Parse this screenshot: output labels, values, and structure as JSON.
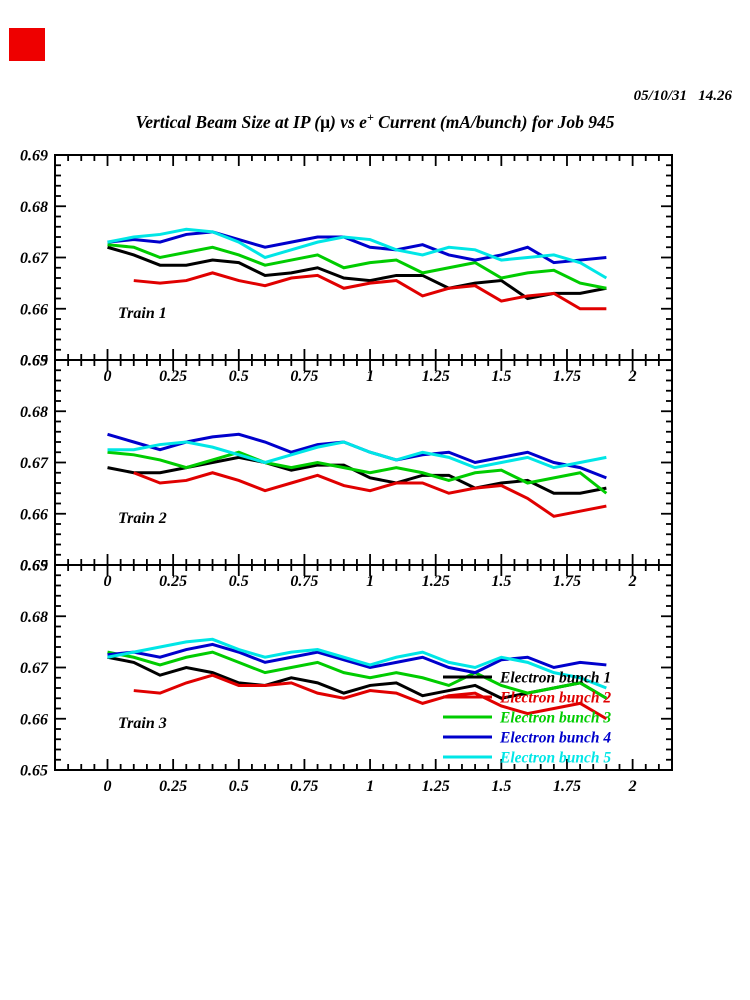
{
  "page": {
    "datestamp": "05/10/31   14.26",
    "corner_marker_color": "#ee0000",
    "title_parts": {
      "prefix": "Vertical Beam Size at IP (",
      "mu": "μ",
      "mid": ") vs e",
      "sup": "+",
      "suffix": " Current (mA/bunch) for Job 945"
    }
  },
  "chart_data": {
    "type": "line",
    "title": "Vertical Beam Size at IP (μ) vs e+ Current (mA/bunch) for Job 945",
    "xlabel": "",
    "ylabel": "",
    "xlim": [
      -0.2,
      2.15
    ],
    "ylim": [
      0.65,
      0.69
    ],
    "grid": false,
    "x_major_ticks": [
      0,
      0.25,
      0.5,
      0.75,
      1,
      1.25,
      1.5,
      1.75,
      2
    ],
    "x_tick_labels": [
      "0",
      "0.25",
      "0.5",
      "0.75",
      "1",
      "1.25",
      "1.5",
      "1.75",
      "2"
    ],
    "x_minor_step": 0.05,
    "y_major_ticks": [
      0.69,
      0.68,
      0.67,
      0.66,
      0.65
    ],
    "y_tick_labels": [
      "0.69",
      "0.68",
      "0.67",
      "0.66",
      "0.65"
    ],
    "y_minor_step": 0.002,
    "legend": {
      "position": "inside-bottom-right-panel-3",
      "entries": [
        {
          "label": "Electron bunch 1",
          "color": "#000000"
        },
        {
          "label": "Electron bunch 2",
          "color": "#e00000"
        },
        {
          "label": "Electron bunch 3",
          "color": "#00cc00"
        },
        {
          "label": "Electron bunch 4",
          "color": "#0000cc"
        },
        {
          "label": "Electron bunch 5",
          "color": "#00e6e6"
        }
      ]
    },
    "panels": [
      {
        "label": "Train 1",
        "series": [
          {
            "name": "Electron bunch 1",
            "color": "#000000",
            "x": [
              0,
              0.1,
              0.2,
              0.3,
              0.4,
              0.5,
              0.6,
              0.7,
              0.8,
              0.9,
              1.0,
              1.1,
              1.2,
              1.3,
              1.4,
              1.5,
              1.6,
              1.7,
              1.8,
              1.9
            ],
            "y": [
              0.672,
              0.6705,
              0.6685,
              0.6685,
              0.6695,
              0.669,
              0.6665,
              0.667,
              0.668,
              0.666,
              0.6655,
              0.6665,
              0.6665,
              0.664,
              0.665,
              0.6655,
              0.662,
              0.663,
              0.663,
              0.664
            ]
          },
          {
            "name": "Electron bunch 2",
            "color": "#e00000",
            "x": [
              0.1,
              0.2,
              0.3,
              0.4,
              0.5,
              0.6,
              0.7,
              0.8,
              0.9,
              1.0,
              1.1,
              1.2,
              1.3,
              1.4,
              1.5,
              1.6,
              1.7,
              1.8,
              1.9
            ],
            "y": [
              0.6655,
              0.665,
              0.6655,
              0.667,
              0.6655,
              0.6645,
              0.666,
              0.6665,
              0.664,
              0.665,
              0.6655,
              0.6625,
              0.664,
              0.6645,
              0.6615,
              0.6625,
              0.663,
              0.66,
              0.66
            ]
          },
          {
            "name": "Electron bunch 3",
            "color": "#00cc00",
            "x": [
              0,
              0.1,
              0.2,
              0.3,
              0.4,
              0.5,
              0.6,
              0.7,
              0.8,
              0.9,
              1.0,
              1.1,
              1.2,
              1.3,
              1.4,
              1.5,
              1.6,
              1.7,
              1.8,
              1.9
            ],
            "y": [
              0.6725,
              0.672,
              0.67,
              0.671,
              0.672,
              0.6705,
              0.6685,
              0.6695,
              0.6705,
              0.668,
              0.669,
              0.6695,
              0.667,
              0.668,
              0.669,
              0.666,
              0.667,
              0.6675,
              0.665,
              0.664
            ]
          },
          {
            "name": "Electron bunch 4",
            "color": "#0000cc",
            "x": [
              0,
              0.1,
              0.2,
              0.3,
              0.4,
              0.5,
              0.6,
              0.7,
              0.8,
              0.9,
              1.0,
              1.1,
              1.2,
              1.3,
              1.4,
              1.5,
              1.6,
              1.7,
              1.8,
              1.9
            ],
            "y": [
              0.673,
              0.6735,
              0.673,
              0.6745,
              0.675,
              0.6735,
              0.672,
              0.673,
              0.674,
              0.674,
              0.672,
              0.6715,
              0.6725,
              0.6705,
              0.6695,
              0.6705,
              0.672,
              0.669,
              0.6695,
              0.67
            ]
          },
          {
            "name": "Electron bunch 5",
            "color": "#00e6e6",
            "x": [
              0,
              0.1,
              0.2,
              0.3,
              0.4,
              0.5,
              0.6,
              0.7,
              0.8,
              0.9,
              1.0,
              1.1,
              1.2,
              1.3,
              1.4,
              1.5,
              1.6,
              1.7,
              1.8,
              1.9
            ],
            "y": [
              0.673,
              0.674,
              0.6745,
              0.6755,
              0.675,
              0.673,
              0.67,
              0.6715,
              0.673,
              0.674,
              0.6735,
              0.6715,
              0.6705,
              0.672,
              0.6715,
              0.6695,
              0.67,
              0.6705,
              0.669,
              0.666
            ]
          }
        ]
      },
      {
        "label": "Train 2",
        "series": [
          {
            "name": "Electron bunch 1",
            "color": "#000000",
            "x": [
              0,
              0.1,
              0.2,
              0.3,
              0.4,
              0.5,
              0.6,
              0.7,
              0.8,
              0.9,
              1.0,
              1.1,
              1.2,
              1.3,
              1.4,
              1.5,
              1.6,
              1.7,
              1.8,
              1.9
            ],
            "y": [
              0.669,
              0.668,
              0.668,
              0.669,
              0.67,
              0.671,
              0.67,
              0.6685,
              0.6695,
              0.6695,
              0.667,
              0.666,
              0.6675,
              0.6675,
              0.665,
              0.666,
              0.6665,
              0.664,
              0.664,
              0.665
            ]
          },
          {
            "name": "Electron bunch 2",
            "color": "#e00000",
            "x": [
              0.1,
              0.2,
              0.3,
              0.4,
              0.5,
              0.6,
              0.7,
              0.8,
              0.9,
              1.0,
              1.1,
              1.2,
              1.3,
              1.4,
              1.5,
              1.6,
              1.7,
              1.8,
              1.9
            ],
            "y": [
              0.668,
              0.666,
              0.6665,
              0.668,
              0.6665,
              0.6645,
              0.666,
              0.6675,
              0.6655,
              0.6645,
              0.666,
              0.666,
              0.664,
              0.665,
              0.6655,
              0.663,
              0.6595,
              0.6605,
              0.6615
            ]
          },
          {
            "name": "Electron bunch 3",
            "color": "#00cc00",
            "x": [
              0,
              0.1,
              0.2,
              0.3,
              0.4,
              0.5,
              0.6,
              0.7,
              0.8,
              0.9,
              1.0,
              1.1,
              1.2,
              1.3,
              1.4,
              1.5,
              1.6,
              1.7,
              1.8,
              1.9
            ],
            "y": [
              0.672,
              0.6715,
              0.6705,
              0.669,
              0.6705,
              0.672,
              0.67,
              0.669,
              0.67,
              0.669,
              0.668,
              0.669,
              0.668,
              0.6665,
              0.668,
              0.6685,
              0.666,
              0.667,
              0.668,
              0.664
            ]
          },
          {
            "name": "Electron bunch 4",
            "color": "#0000cc",
            "x": [
              0,
              0.1,
              0.2,
              0.3,
              0.4,
              0.5,
              0.6,
              0.7,
              0.8,
              0.9,
              1.0,
              1.1,
              1.2,
              1.3,
              1.4,
              1.5,
              1.6,
              1.7,
              1.8,
              1.9
            ],
            "y": [
              0.6755,
              0.674,
              0.6725,
              0.674,
              0.675,
              0.6755,
              0.674,
              0.672,
              0.6735,
              0.674,
              0.672,
              0.6705,
              0.6715,
              0.672,
              0.67,
              0.671,
              0.672,
              0.67,
              0.669,
              0.667
            ]
          },
          {
            "name": "Electron bunch 5",
            "color": "#00e6e6",
            "x": [
              0,
              0.1,
              0.2,
              0.3,
              0.4,
              0.5,
              0.6,
              0.7,
              0.8,
              0.9,
              1.0,
              1.1,
              1.2,
              1.3,
              1.4,
              1.5,
              1.6,
              1.7,
              1.8,
              1.9
            ],
            "y": [
              0.6725,
              0.6725,
              0.6735,
              0.674,
              0.673,
              0.6715,
              0.67,
              0.6715,
              0.673,
              0.674,
              0.672,
              0.6705,
              0.672,
              0.671,
              0.669,
              0.67,
              0.671,
              0.669,
              0.67,
              0.671
            ]
          }
        ]
      },
      {
        "label": "Train 3",
        "series": [
          {
            "name": "Electron bunch 1",
            "color": "#000000",
            "x": [
              0,
              0.1,
              0.2,
              0.3,
              0.4,
              0.5,
              0.6,
              0.7,
              0.8,
              0.9,
              1.0,
              1.1,
              1.2,
              1.3,
              1.4,
              1.5,
              1.6,
              1.7,
              1.8,
              1.9
            ],
            "y": [
              0.672,
              0.671,
              0.6685,
              0.67,
              0.669,
              0.667,
              0.6665,
              0.668,
              0.667,
              0.665,
              0.6665,
              0.667,
              0.6645,
              0.6655,
              0.6665,
              0.664,
              0.665,
              0.666,
              0.667,
              0.664
            ]
          },
          {
            "name": "Electron bunch 2",
            "color": "#e00000",
            "x": [
              0.1,
              0.2,
              0.3,
              0.4,
              0.5,
              0.6,
              0.7,
              0.8,
              0.9,
              1.0,
              1.1,
              1.2,
              1.3,
              1.4,
              1.5,
              1.6,
              1.7,
              1.8,
              1.9
            ],
            "y": [
              0.6655,
              0.665,
              0.667,
              0.6685,
              0.6665,
              0.6665,
              0.667,
              0.665,
              0.664,
              0.6655,
              0.665,
              0.663,
              0.6645,
              0.665,
              0.6625,
              0.661,
              0.662,
              0.663,
              0.66
            ]
          },
          {
            "name": "Electron bunch 3",
            "color": "#00cc00",
            "x": [
              0,
              0.1,
              0.2,
              0.3,
              0.4,
              0.5,
              0.6,
              0.7,
              0.8,
              0.9,
              1.0,
              1.1,
              1.2,
              1.3,
              1.4,
              1.5,
              1.6,
              1.7,
              1.8,
              1.9
            ],
            "y": [
              0.673,
              0.672,
              0.6705,
              0.672,
              0.673,
              0.671,
              0.669,
              0.67,
              0.671,
              0.669,
              0.668,
              0.669,
              0.668,
              0.6665,
              0.669,
              0.6665,
              0.665,
              0.666,
              0.667,
              0.664
            ]
          },
          {
            "name": "Electron bunch 4",
            "color": "#0000cc",
            "x": [
              0,
              0.1,
              0.2,
              0.3,
              0.4,
              0.5,
              0.6,
              0.7,
              0.8,
              0.9,
              1.0,
              1.1,
              1.2,
              1.3,
              1.4,
              1.5,
              1.6,
              1.7,
              1.8,
              1.9
            ],
            "y": [
              0.6725,
              0.673,
              0.672,
              0.6735,
              0.6745,
              0.673,
              0.671,
              0.672,
              0.673,
              0.6715,
              0.67,
              0.671,
              0.672,
              0.67,
              0.669,
              0.6715,
              0.672,
              0.67,
              0.671,
              0.6705
            ]
          },
          {
            "name": "Electron bunch 5",
            "color": "#00e6e6",
            "x": [
              0,
              0.1,
              0.2,
              0.3,
              0.4,
              0.5,
              0.6,
              0.7,
              0.8,
              0.9,
              1.0,
              1.1,
              1.2,
              1.3,
              1.4,
              1.5,
              1.6,
              1.7,
              1.8,
              1.9
            ],
            "y": [
              0.672,
              0.673,
              0.674,
              0.675,
              0.6755,
              0.6735,
              0.672,
              0.673,
              0.6735,
              0.672,
              0.6705,
              0.672,
              0.673,
              0.671,
              0.67,
              0.672,
              0.671,
              0.669,
              0.668,
              0.666
            ]
          }
        ]
      }
    ]
  }
}
